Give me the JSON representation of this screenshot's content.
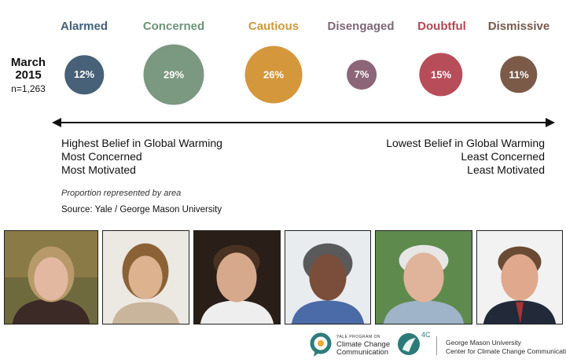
{
  "chart_data": {
    "type": "bubble",
    "survey": {
      "date": "March 2015",
      "n_label": "n=1,263"
    },
    "categories": [
      "Alarmed",
      "Concerned",
      "Cautious",
      "Disengaged",
      "Doubtful",
      "Dismissive"
    ],
    "values": [
      12,
      29,
      26,
      7,
      15,
      11
    ],
    "value_labels": [
      "12%",
      "29%",
      "26%",
      "7%",
      "15%",
      "11%"
    ],
    "colors": [
      "#466178",
      "#7b9880",
      "#d4973b",
      "#8c6678",
      "#b84d5a",
      "#7b5a48"
    ],
    "label_colors": [
      "#41607e",
      "#6f9278",
      "#d29a37",
      "#7f6675",
      "#b34753",
      "#765a4c"
    ],
    "left_description": [
      "Highest Belief in Global Warming",
      "Most Concerned",
      "Most Motivated"
    ],
    "right_description": [
      "Lowest Belief in Global Warming",
      "Least Concerned",
      "Least Motivated"
    ],
    "note": "Proportion represented by area",
    "source": "Source: Yale / George Mason University"
  },
  "footer": {
    "yale_small": "YALE PROGRAM ON",
    "yale_line1": "Climate Change",
    "yale_line2": "Communication",
    "fourc": "4C",
    "gmu_line1": "George Mason University",
    "gmu_line2": "Center for Climate Change Communication"
  },
  "colors": {
    "yale_logo": "#2e7d7a",
    "fourc_logo": "#2b7a78",
    "axis": "#111111"
  }
}
